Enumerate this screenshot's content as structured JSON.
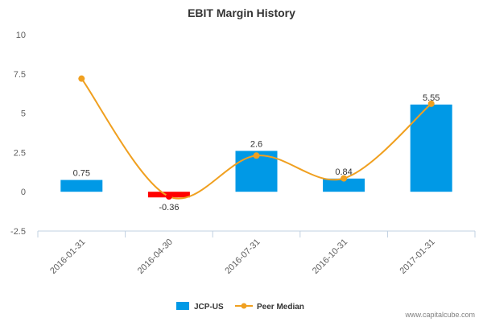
{
  "chart_data": {
    "type": "bar",
    "title": "EBIT Margin History",
    "categories": [
      "2016-01-31",
      "2016-04-30",
      "2016-07-31",
      "2016-10-31",
      "2017-01-31"
    ],
    "series": [
      {
        "name": "JCP-US",
        "type": "bar",
        "values": [
          0.75,
          -0.36,
          2.6,
          0.84,
          5.55
        ],
        "data_labels": [
          "0.75",
          "-0.36",
          "2.6",
          "0.84",
          "5.55"
        ],
        "color": "#0099e6",
        "negative_color": "#ff0000"
      },
      {
        "name": "Peer Median",
        "type": "line",
        "values": [
          7.2,
          -0.3,
          2.3,
          0.85,
          5.6
        ],
        "color": "#f0a020"
      }
    ],
    "yticks": [
      "10",
      "7.5",
      "5",
      "2.5",
      "0",
      "-2.5"
    ],
    "ytick_values": [
      10,
      7.5,
      5,
      2.5,
      0,
      -2.5
    ],
    "ylim": [
      -2.5,
      10
    ],
    "grid": false,
    "legend_position": "bottom-center"
  },
  "watermark": "www.capitalcube.com"
}
